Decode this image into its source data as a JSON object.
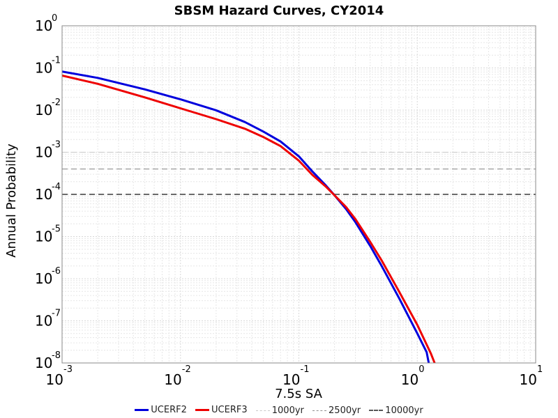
{
  "chart_data": {
    "type": "line",
    "title": "SBSM Hazard Curves, CY2014",
    "xlabel": "7.5s SA",
    "ylabel": "Annual Probability",
    "x_scale": "log",
    "y_scale": "log",
    "xlim": [
      0.001,
      10
    ],
    "ylim": [
      1e-08,
      1
    ],
    "grid": true,
    "legend_position": "bottom",
    "x_ticks": [
      {
        "base": "10",
        "exp": "-3"
      },
      {
        "base": "10",
        "exp": "-2"
      },
      {
        "base": "10",
        "exp": "-1"
      },
      {
        "base": "10",
        "exp": "0"
      },
      {
        "base": "10",
        "exp": "1"
      }
    ],
    "y_ticks": [
      {
        "base": "10",
        "exp": "0"
      },
      {
        "base": "10",
        "exp": "-1"
      },
      {
        "base": "10",
        "exp": "-2"
      },
      {
        "base": "10",
        "exp": "-3"
      },
      {
        "base": "10",
        "exp": "-4"
      },
      {
        "base": "10",
        "exp": "-5"
      },
      {
        "base": "10",
        "exp": "-6"
      },
      {
        "base": "10",
        "exp": "-7"
      },
      {
        "base": "10",
        "exp": "-8"
      }
    ],
    "series": [
      {
        "name": "UCERF2",
        "color": "#0000dd",
        "x": [
          0.001,
          0.002,
          0.005,
          0.01,
          0.02,
          0.035,
          0.05,
          0.07,
          0.1,
          0.13,
          0.17,
          0.2,
          0.25,
          0.3,
          0.4,
          0.5,
          0.7,
          1.0,
          1.2,
          1.25
        ],
        "y": [
          0.082,
          0.058,
          0.031,
          0.018,
          0.0099,
          0.0052,
          0.0031,
          0.0018,
          0.0008,
          0.00035,
          0.00016,
          9.5e-05,
          4.5e-05,
          2.2e-05,
          6e-06,
          2e-06,
          3.5e-07,
          5e-08,
          1.8e-08,
          1e-08
        ]
      },
      {
        "name": "UCERF3",
        "color": "#ee0000",
        "x": [
          0.001,
          0.002,
          0.005,
          0.01,
          0.02,
          0.035,
          0.05,
          0.07,
          0.1,
          0.13,
          0.17,
          0.2,
          0.25,
          0.3,
          0.4,
          0.5,
          0.7,
          1.0,
          1.3,
          1.4
        ],
        "y": [
          0.066,
          0.042,
          0.02,
          0.011,
          0.0061,
          0.0036,
          0.0023,
          0.0014,
          0.00063,
          0.00029,
          0.00015,
          9.5e-05,
          5e-05,
          2.6e-05,
          7.5e-06,
          2.7e-06,
          5e-07,
          8e-08,
          1.7e-08,
          1e-08
        ]
      }
    ],
    "reference_lines": [
      {
        "name": "1000yr",
        "y": 0.001,
        "color": "#c8c8c8"
      },
      {
        "name": "2500yr",
        "y": 0.0004,
        "color": "#909090"
      },
      {
        "name": "10000yr",
        "y": 0.0001,
        "color": "#555555"
      }
    ]
  }
}
